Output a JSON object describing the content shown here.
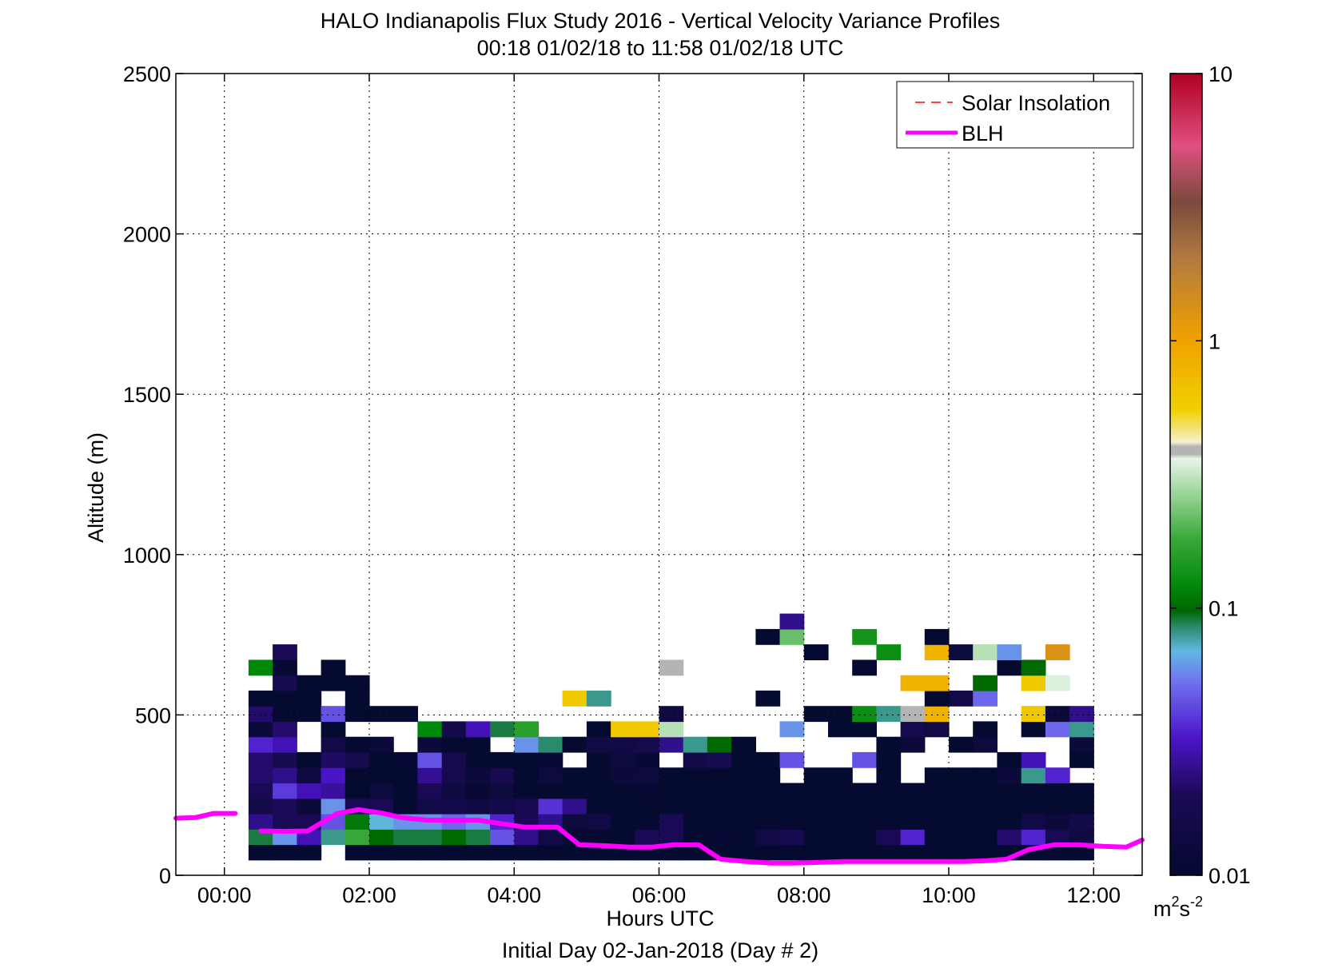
{
  "chart_data": {
    "type": "heatmap",
    "title": "HALO Indianapolis Flux Study 2016 - Vertical Velocity Variance Profiles",
    "subtitle": "00:18 01/02/18 to 11:58 01/02/18  UTC",
    "xlabel": "Hours UTC",
    "xlabel2": "Initial Day 02-Jan-2018 (Day # 2)",
    "ylabel": "Altitude (m)",
    "xlim": [
      -0.67,
      12.67
    ],
    "ylim": [
      0,
      2500
    ],
    "x_ticks": [
      0,
      2,
      4,
      6,
      8,
      10,
      12
    ],
    "x_tick_labels": [
      "00:00",
      "02:00",
      "04:00",
      "06:00",
      "08:00",
      "10:00",
      "12:00"
    ],
    "y_ticks": [
      0,
      500,
      1000,
      1500,
      2000,
      2500
    ],
    "y_tick_labels": [
      "0",
      "500",
      "1000",
      "1500",
      "2000",
      "2500"
    ],
    "grid": true,
    "legend_position": "top-right",
    "colorbar": {
      "scale": "log",
      "range": [
        0.01,
        10
      ],
      "ticks": [
        0.01,
        0.1,
        1,
        10
      ],
      "tick_labels": [
        "0.01",
        "0.1",
        "1",
        "10"
      ],
      "unit": "m",
      "unit_superscript": "2",
      "unit_suffix": "s",
      "unit_suffix_superscript": "-2"
    },
    "heatmap": {
      "value_unit": "m2 s-2",
      "x_centers_hours": [
        0.5,
        0.833,
        1.167,
        1.5,
        1.833,
        2.167,
        2.5,
        2.833,
        3.167,
        3.5,
        3.833,
        4.167,
        4.5,
        4.833,
        5.167,
        5.5,
        5.833,
        6.167,
        6.5,
        6.833,
        7.167,
        7.5,
        7.833,
        8.167,
        8.5,
        8.833,
        9.167,
        9.5,
        9.833,
        10.167,
        10.5,
        10.833,
        11.167,
        11.5,
        11.833
      ],
      "altitude_centers_m": [
        72,
        120,
        168,
        216,
        264,
        312,
        360,
        408,
        456,
        504,
        552,
        600,
        648,
        696,
        744,
        792
      ],
      "rows": [
        {
          "alt": 72,
          "v": [
            0.01,
            0.01,
            0.01,
            null,
            0.01,
            0.01,
            0.01,
            0.01,
            0.01,
            0.01,
            0.01,
            0.01,
            0.01,
            0.01,
            0.01,
            0.01,
            0.01,
            0.01,
            0.01,
            0.01,
            0.01,
            0.01,
            0.01,
            0.01,
            0.01,
            0.01,
            0.01,
            0.01,
            0.01,
            0.01,
            0.01,
            0.01,
            0.01,
            0.01,
            0.01
          ]
        },
        {
          "alt": 120,
          "v": [
            0.09,
            0.06,
            0.03,
            0.08,
            0.18,
            0.1,
            0.09,
            0.09,
            0.1,
            0.09,
            0.045,
            0.025,
            0.015,
            0.011,
            0.01,
            0.01,
            0.02,
            0.02,
            0.01,
            0.011,
            0.01,
            0.015,
            0.018,
            0.01,
            0.01,
            0.01,
            0.02,
            0.035,
            0.01,
            0.01,
            0.01,
            0.022,
            0.035,
            0.02,
            0.014
          ]
        },
        {
          "alt": 168,
          "v": [
            0.025,
            0.02,
            0.02,
            0.045,
            0.11,
            0.07,
            0.06,
            0.06,
            0.05,
            0.06,
            0.035,
            0.02,
            0.025,
            0.013,
            0.015,
            0.01,
            0.01,
            0.02,
            0.01,
            0.01,
            0.01,
            0.01,
            0.01,
            0.01,
            0.01,
            0.01,
            0.01,
            0.01,
            0.01,
            0.01,
            0.01,
            0.01,
            0.015,
            0.012,
            0.016
          ]
        },
        {
          "alt": 216,
          "v": [
            0.016,
            0.02,
            0.012,
            0.06,
            0.02,
            0.02,
            0.01,
            0.015,
            0.016,
            0.014,
            0.016,
            0.018,
            0.038,
            0.025,
            0.01,
            0.01,
            0.01,
            0.01,
            0.01,
            0.01,
            0.01,
            0.01,
            0.01,
            0.01,
            0.01,
            0.01,
            0.01,
            0.01,
            0.01,
            0.01,
            0.01,
            0.01,
            0.01,
            0.01,
            0.01
          ]
        },
        {
          "alt": 264,
          "v": [
            0.02,
            0.04,
            0.03,
            0.027,
            0.01,
            0.013,
            0.01,
            0.02,
            0.014,
            0.011,
            0.013,
            0.01,
            0.01,
            0.01,
            0.01,
            0.01,
            0.011,
            0.01,
            0.01,
            0.01,
            0.01,
            0.01,
            0.01,
            0.01,
            0.01,
            0.01,
            0.01,
            0.01,
            0.01,
            0.01,
            0.01,
            0.01,
            0.01,
            0.01,
            0.01
          ]
        },
        {
          "alt": 312,
          "v": [
            0.022,
            0.025,
            0.014,
            0.032,
            0.01,
            0.01,
            0.01,
            0.026,
            0.017,
            0.012,
            0.018,
            0.01,
            0.013,
            0.01,
            0.01,
            0.012,
            0.013,
            0.01,
            0.01,
            0.01,
            0.01,
            0.01,
            null,
            0.01,
            0.01,
            null,
            0.01,
            null,
            0.01,
            0.01,
            0.01,
            0.012,
            0.08,
            0.035,
            null
          ]
        },
        {
          "alt": 360,
          "v": [
            0.022,
            0.018,
            0.01,
            0.021,
            0.018,
            0.01,
            0.011,
            0.045,
            0.018,
            0.01,
            0.01,
            0.01,
            0.011,
            null,
            0.01,
            0.013,
            0.011,
            null,
            0.016,
            0.018,
            0.01,
            0.01,
            0.045,
            null,
            null,
            0.045,
            0.01,
            null,
            null,
            null,
            null,
            0.01,
            0.03,
            null,
            0.01
          ]
        },
        {
          "alt": 408,
          "v": [
            0.035,
            0.03,
            null,
            0.016,
            0.01,
            0.012,
            null,
            0.012,
            0.01,
            0.01,
            null,
            0.06,
            0.085,
            0.01,
            0.015,
            0.015,
            0.017,
            0.025,
            0.08,
            0.1,
            0.01,
            null,
            null,
            null,
            null,
            null,
            0.01,
            0.012,
            null,
            0.01,
            0.013,
            null,
            null,
            null,
            0.012
          ]
        },
        {
          "alt": 456,
          "v": [
            0.012,
            0.022,
            null,
            0.01,
            null,
            null,
            null,
            0.12,
            0.016,
            0.03,
            0.09,
            0.16,
            null,
            null,
            0.01,
            0.6,
            0.6,
            0.3,
            null,
            null,
            null,
            null,
            0.06,
            null,
            0.01,
            0.01,
            null,
            0.017,
            0.015,
            null,
            0.01,
            null,
            0.01,
            0.05,
            0.08
          ]
        },
        {
          "alt": 504,
          "v": [
            0.022,
            0.01,
            0.01,
            0.045,
            0.01,
            0.01,
            0.01,
            null,
            null,
            null,
            null,
            null,
            null,
            null,
            null,
            null,
            null,
            0.014,
            null,
            null,
            null,
            null,
            null,
            0.01,
            0.01,
            0.13,
            0.08,
            0.4,
            0.8,
            null,
            null,
            null,
            0.6,
            0.012,
            0.025
          ]
        },
        {
          "alt": 552,
          "v": [
            0.01,
            0.01,
            0.01,
            null,
            0.01,
            null,
            null,
            null,
            null,
            null,
            null,
            null,
            null,
            0.6,
            0.08,
            null,
            null,
            null,
            null,
            null,
            null,
            0.01,
            null,
            null,
            null,
            null,
            null,
            null,
            0.01,
            0.015,
            0.05,
            null,
            null,
            null,
            null
          ]
        },
        {
          "alt": 600,
          "v": [
            null,
            0.018,
            0.01,
            0.01,
            0.01,
            null,
            null,
            null,
            null,
            null,
            null,
            null,
            null,
            null,
            null,
            null,
            null,
            null,
            null,
            null,
            null,
            null,
            null,
            null,
            null,
            null,
            null,
            0.8,
            0.8,
            null,
            0.1,
            null,
            0.6,
            0.35,
            null
          ]
        },
        {
          "alt": 648,
          "v": [
            0.12,
            0.011,
            null,
            0.01,
            null,
            null,
            null,
            null,
            null,
            null,
            null,
            null,
            null,
            null,
            null,
            null,
            null,
            0.4,
            null,
            null,
            null,
            null,
            null,
            null,
            null,
            0.01,
            null,
            null,
            null,
            null,
            null,
            0.01,
            0.1,
            null,
            null
          ]
        },
        {
          "alt": 696,
          "v": [
            null,
            0.02,
            null,
            null,
            null,
            null,
            null,
            null,
            null,
            null,
            null,
            null,
            null,
            null,
            null,
            null,
            null,
            null,
            null,
            null,
            null,
            null,
            null,
            0.01,
            null,
            null,
            0.13,
            null,
            0.8,
            0.013,
            0.3,
            0.06,
            null,
            1.3,
            null
          ]
        },
        {
          "alt": 744,
          "v": [
            null,
            null,
            null,
            null,
            null,
            null,
            null,
            null,
            null,
            null,
            null,
            null,
            null,
            null,
            null,
            null,
            null,
            null,
            null,
            null,
            null,
            0.01,
            0.22,
            null,
            null,
            0.14,
            null,
            null,
            0.01,
            null,
            null,
            null,
            null,
            null,
            null
          ]
        },
        {
          "alt": 792,
          "v": [
            null,
            null,
            null,
            null,
            null,
            null,
            null,
            null,
            null,
            null,
            null,
            null,
            null,
            null,
            null,
            null,
            null,
            null,
            null,
            null,
            null,
            null,
            0.025,
            null,
            null,
            null,
            null,
            null,
            null,
            null,
            null,
            null,
            null,
            null,
            null
          ]
        }
      ]
    },
    "series": [
      {
        "name": "Solar Insolation",
        "color": "#ff0000",
        "style": "dashed",
        "x": [],
        "y": []
      },
      {
        "name": "BLH",
        "color": "#ff00ff",
        "style": "solid",
        "segments": [
          {
            "x": [
              -0.67,
              -0.4,
              -0.15,
              0.15
            ],
            "y": [
              178,
              180,
              193,
              193
            ]
          },
          {
            "x": [
              0.5,
              0.85,
              1.15,
              1.35,
              1.55,
              1.85,
              2.15,
              2.45,
              2.8,
              3.1,
              3.5,
              3.85,
              4.15,
              4.6,
              4.9,
              5.2,
              5.6,
              5.9,
              6.2,
              6.55,
              6.85,
              7.2,
              7.55,
              7.85,
              8.15,
              8.55,
              8.85,
              9.2,
              9.55,
              9.9,
              10.2,
              10.5,
              10.8,
              11.1,
              11.45,
              11.8,
              12.15,
              12.45,
              12.67
            ],
            "y": [
              138,
              137,
              138,
              165,
              192,
              205,
              195,
              180,
              172,
              172,
              172,
              160,
              150,
              150,
              95,
              93,
              88,
              88,
              95,
              95,
              50,
              43,
              38,
              38,
              40,
              43,
              43,
              43,
              43,
              43,
              43,
              45,
              50,
              80,
              95,
              95,
              90,
              88,
              110
            ]
          }
        ]
      }
    ]
  }
}
